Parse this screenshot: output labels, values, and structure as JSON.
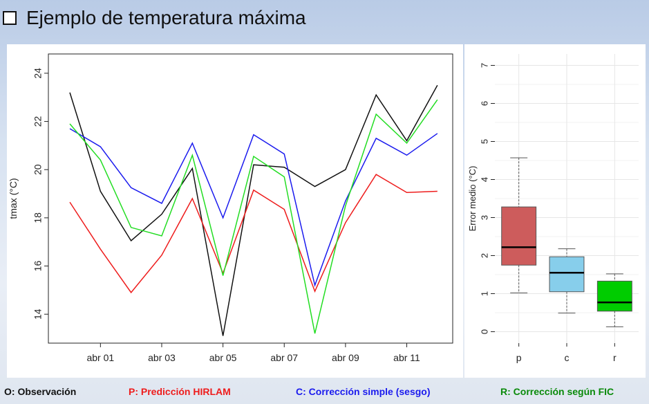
{
  "title": "Ejemplo de temperatura máxima",
  "legend": [
    {
      "label": "O: Observación",
      "color": "#111111"
    },
    {
      "label": "P: Predicción  HIRLAM",
      "color": "#ee1c1c"
    },
    {
      "label": "C: Corrección simple (sesgo)",
      "color": "#1a1aee"
    },
    {
      "label": "R: Corrección según FIC",
      "color": "#0a8a0a"
    }
  ],
  "chart_data": [
    {
      "type": "line",
      "ylabel": "tmax (°C)",
      "xlabel": "",
      "ylim": [
        12.8,
        24.8
      ],
      "yticks": [
        14,
        16,
        18,
        20,
        22,
        24
      ],
      "x": [
        1,
        2,
        3,
        4,
        5,
        6,
        7,
        8,
        9,
        10,
        11,
        12,
        13
      ],
      "xticks": [
        {
          "x": 2,
          "label": "abr 01"
        },
        {
          "x": 4,
          "label": "abr 03"
        },
        {
          "x": 6,
          "label": "abr 05"
        },
        {
          "x": 8,
          "label": "abr 07"
        },
        {
          "x": 10,
          "label": "abr 09"
        },
        {
          "x": 12,
          "label": "abr 11"
        }
      ],
      "xlim": [
        0.3,
        13.5
      ],
      "series": [
        {
          "name": "O",
          "color": "#111111",
          "values": [
            23.2,
            19.1,
            17.05,
            18.15,
            20.05,
            13.1,
            20.2,
            20.1,
            19.3,
            20.0,
            23.1,
            21.2,
            23.5
          ]
        },
        {
          "name": "P",
          "color": "#ee1c1c",
          "values": [
            18.65,
            16.7,
            14.9,
            16.45,
            18.8,
            15.7,
            19.15,
            18.35,
            14.95,
            17.8,
            19.8,
            19.05,
            19.1
          ]
        },
        {
          "name": "C",
          "color": "#1a1aee",
          "values": [
            21.7,
            20.95,
            19.25,
            18.6,
            21.1,
            18.0,
            21.45,
            20.65,
            15.2,
            18.7,
            21.3,
            20.6,
            21.5
          ]
        },
        {
          "name": "R",
          "color": "#22dd22",
          "values": [
            21.9,
            20.4,
            17.6,
            17.25,
            20.6,
            15.6,
            20.55,
            19.7,
            13.2,
            18.5,
            22.3,
            21.1,
            22.9
          ]
        }
      ]
    },
    {
      "type": "box",
      "ylabel": "Error medio (°C)",
      "ylim": [
        -0.3,
        7.3
      ],
      "yticks": [
        0,
        1,
        2,
        3,
        4,
        5,
        6,
        7
      ],
      "grid": true,
      "categories": [
        "p",
        "c",
        "r"
      ],
      "boxes": [
        {
          "label": "p",
          "color": "#cd5c5c",
          "min": 1.02,
          "q1": 1.75,
          "median": 2.22,
          "q3": 3.28,
          "max": 4.57
        },
        {
          "label": "c",
          "color": "#87ceeb",
          "min": 0.49,
          "q1": 1.05,
          "median": 1.55,
          "q3": 1.97,
          "max": 2.18
        },
        {
          "label": "r",
          "color": "#00cc00",
          "min": 0.13,
          "q1": 0.54,
          "median": 0.77,
          "q3": 1.33,
          "max": 1.52
        }
      ]
    }
  ]
}
